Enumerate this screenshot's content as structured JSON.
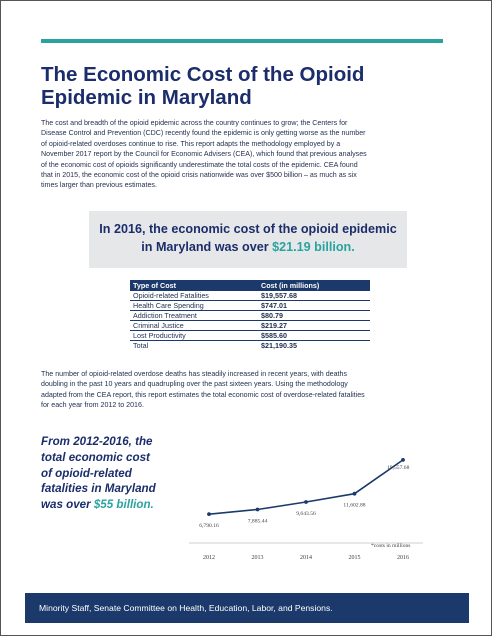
{
  "document": {
    "title_line1": "The Economic Cost of the Opioid",
    "title_line2": "Epidemic in Maryland",
    "intro_lines": [
      "The cost and breadth of the opioid epidemic across the country continues to grow; the Centers for",
      "Disease Control and Prevention (CDC) recently found the epidemic is only getting worse as the number",
      "of opioid-related overdoses continue to rise.  This report adapts the methodology employed by a",
      "November 2017 report by the Council for Economic Advisers (CEA), which found that previous analyses",
      "of the economic cost of opioids significantly underestimate the total costs of the epidemic.  CEA found",
      "that in 2015, the economic cost of the opioid crisis nationwide was over $500 billion – as much as six",
      "times larger than previous estimates."
    ],
    "callout": {
      "line1": "In 2016, the economic cost of the opioid epidemic",
      "line2_prefix": "in Maryland was over ",
      "line2_highlight": "$21.19 billion."
    },
    "cost_table": {
      "headers": [
        "Type of Cost",
        "Cost (in millions)"
      ],
      "rows": [
        [
          "Opioid-related Fatalities",
          "$19,557.68"
        ],
        [
          "Health Care Spending",
          "$747.01"
        ],
        [
          "Addiction Treatment",
          "$80.79"
        ],
        [
          "Criminal Justice",
          "$219.27"
        ],
        [
          "Lost Productivity",
          "$585.60"
        ],
        [
          "Total",
          "$21,190.35"
        ]
      ]
    },
    "body2_lines": [
      "The number of opioid-related overdose deaths has steadily increased in recent years, with deaths",
      "doubling in the past 10 years and quadrupling over the past sixteen years.  Using the methodology",
      "adapted from the CEA report, this report estimates the total economic cost of overdose-related fatalities",
      "for each year from 2012 to 2016."
    ],
    "side_quote": {
      "line1": "From 2012-2016, the",
      "line2": "total economic cost",
      "line3": "of opioid-related",
      "line4": "fatalities in Maryland",
      "line5_prefix": "was over ",
      "line5_highlight": "$55 billion."
    },
    "footer_text": "Minority Staff, Senate Committee on Health, Education, Labor, and Pensions."
  },
  "chart_data": {
    "type": "line",
    "x": [
      "2012",
      "2013",
      "2014",
      "2015",
      "2016"
    ],
    "values": [
      6790.16,
      7885.44,
      9643.56,
      11602.88,
      19557.68
    ],
    "data_labels": [
      "6,790.16",
      "7,885.44",
      "9,643.56",
      "11,602.88",
      "19,557.68"
    ],
    "annotation": "*costs in millions",
    "ylim": [
      0,
      24000
    ],
    "grid": false,
    "colors": {
      "line": "#1b3a6b",
      "marker": "#1b3a6b",
      "axis": "#bfbfbf"
    }
  }
}
